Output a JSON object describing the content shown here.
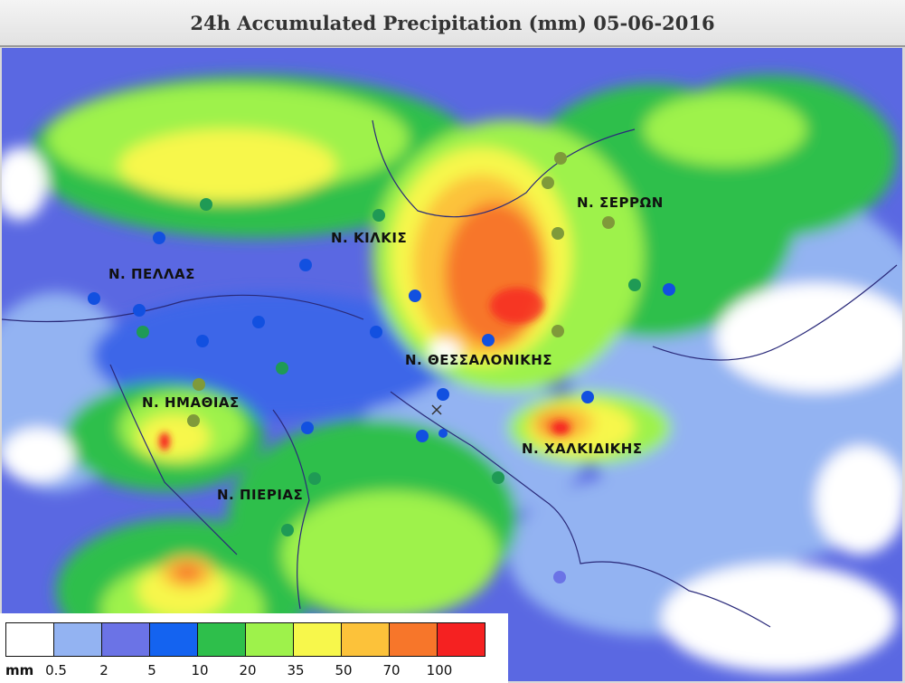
{
  "header": {
    "title": "24h Accumulated Precipitation (mm) 05-06-2016"
  },
  "regions": [
    {
      "id": "pella",
      "label": "Ν. ΠΕΛΛΑΣ"
    },
    {
      "id": "kilkis",
      "label": "Ν. ΚΙΛΚΙΣ"
    },
    {
      "id": "serres",
      "label": "Ν. ΣΕΡΡΩΝ"
    },
    {
      "id": "thessaloniki",
      "label": "Ν. ΘΕΣΣΑΛΟΝΙΚΗΣ"
    },
    {
      "id": "imathia",
      "label": "Ν. ΗΜΑΘΙΑΣ"
    },
    {
      "id": "chalkidiki",
      "label": "Ν. ΧΑΛΚΙΔΙΚΗΣ"
    },
    {
      "id": "pieria",
      "label": "Ν. ΠΙΕΡΙΑΣ"
    }
  ],
  "legend": {
    "unit": "mm",
    "colors": [
      "#ffffff",
      "#93b3f2",
      "#6b73e6",
      "#1463f0",
      "#2ebf4b",
      "#9ef24b",
      "#f7f74b",
      "#fcc23a",
      "#f7762a",
      "#f52121"
    ],
    "ticks": [
      "0.5",
      "2",
      "5",
      "10",
      "20",
      "35",
      "50",
      "70",
      "100"
    ]
  },
  "stations": {
    "marker_icon": "station-dot-icon",
    "colors": {
      "low": "#1250e0",
      "mid": "#1f9a55",
      "high": "#7f9a3a"
    }
  }
}
